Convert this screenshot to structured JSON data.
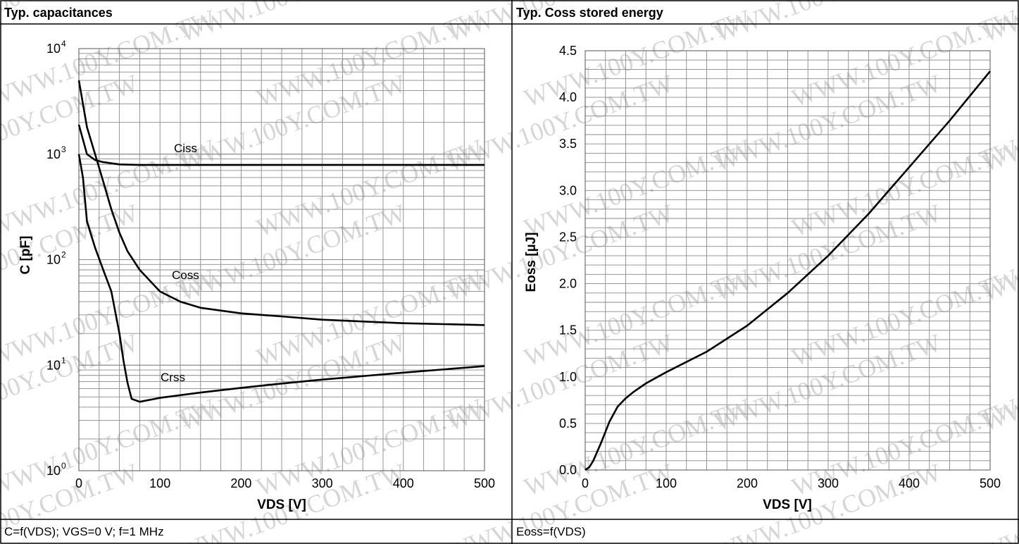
{
  "panels": [
    {
      "title": "Typ. capacitances",
      "caption": "C=f(VDS); VGS=0 V; f=1 MHz"
    },
    {
      "title": "Typ. Coss stored energy",
      "caption": "Eoss=f(VDS)"
    }
  ],
  "watermark": "WWW.100Y.COM.TW",
  "chart_data": [
    {
      "type": "line",
      "title": "Typ. capacitances",
      "xlabel": "VDS [V]",
      "ylabel": "C [pF]",
      "xlim": [
        0,
        500
      ],
      "ylim": [
        1,
        10000
      ],
      "y_scale": "log",
      "grid": true,
      "x_ticks": [
        "0",
        "100",
        "200",
        "300",
        "400",
        "500"
      ],
      "y_ticks": [
        "10^0",
        "10^1",
        "10^2",
        "10^3",
        "10^4"
      ],
      "series": [
        {
          "name": "Ciss",
          "x": [
            0,
            10,
            20,
            30,
            40,
            50,
            75,
            100,
            200,
            300,
            400,
            500
          ],
          "y": [
            1900,
            1000,
            880,
            840,
            820,
            800,
            790,
            790,
            790,
            790,
            790,
            790
          ]
        },
        {
          "name": "Coss",
          "x": [
            0,
            10,
            20,
            30,
            40,
            50,
            60,
            75,
            100,
            125,
            150,
            200,
            250,
            300,
            400,
            500
          ],
          "y": [
            5000,
            1800,
            1000,
            550,
            300,
            180,
            120,
            80,
            50,
            40,
            35,
            31,
            29,
            27,
            25,
            24
          ]
        },
        {
          "name": "Crss",
          "x": [
            0,
            5,
            10,
            20,
            30,
            40,
            50,
            55,
            60,
            65,
            75,
            100,
            150,
            200,
            250,
            300,
            400,
            500
          ],
          "y": [
            1000,
            600,
            230,
            130,
            80,
            50,
            20,
            11,
            6.8,
            4.8,
            4.5,
            4.9,
            5.5,
            6.1,
            6.7,
            7.3,
            8.5,
            9.8
          ]
        }
      ],
      "annotations": [
        "Ciss",
        "Coss",
        "Crss"
      ]
    },
    {
      "type": "line",
      "title": "Typ. Coss stored energy",
      "xlabel": "VDS [V]",
      "ylabel": "Eoss [µJ]",
      "xlim": [
        0,
        500
      ],
      "ylim": [
        0,
        4.5
      ],
      "grid": true,
      "x_ticks": [
        "0",
        "100",
        "200",
        "300",
        "400",
        "500"
      ],
      "y_ticks": [
        "0.0",
        "0.5",
        "1.0",
        "1.5",
        "2.0",
        "2.5",
        "3.0",
        "3.5",
        "4.0",
        "4.5"
      ],
      "series": [
        {
          "x": [
            0,
            5,
            10,
            20,
            30,
            40,
            50,
            60,
            75,
            100,
            150,
            200,
            250,
            300,
            350,
            400,
            450,
            500
          ],
          "y": [
            0,
            0.03,
            0.1,
            0.3,
            0.52,
            0.68,
            0.77,
            0.84,
            0.93,
            1.05,
            1.27,
            1.55,
            1.9,
            2.3,
            2.75,
            3.25,
            3.75,
            4.28
          ]
        }
      ]
    }
  ]
}
